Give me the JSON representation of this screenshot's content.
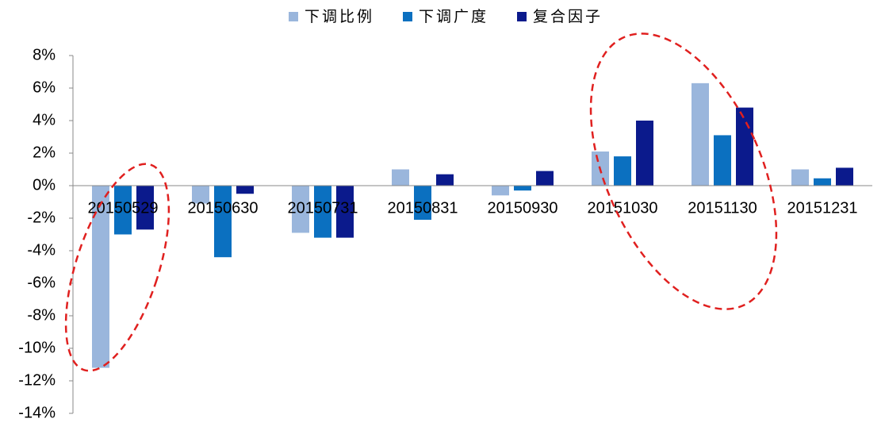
{
  "chart_data": {
    "type": "bar",
    "categories": [
      "20150529",
      "20150630",
      "20150731",
      "20150831",
      "20150930",
      "20151030",
      "20151130",
      "20151231"
    ],
    "series": [
      {
        "name": "下调比例",
        "color": "#9ab6dc",
        "values": [
          -11.2,
          -1.1,
          -2.9,
          1.0,
          -0.6,
          2.1,
          6.3,
          1.0
        ]
      },
      {
        "name": "下调广度",
        "color": "#0b70c0",
        "values": [
          -3.0,
          -4.4,
          -3.2,
          -2.1,
          -0.3,
          1.8,
          3.1,
          0.45
        ]
      },
      {
        "name": "复合因子",
        "color": "#0b1a8c",
        "values": [
          -2.7,
          -0.5,
          -3.2,
          0.7,
          0.9,
          4.0,
          4.8,
          1.1
        ]
      }
    ],
    "ylim": [
      -14,
      8
    ],
    "yticks": [
      {
        "value": -14,
        "label": "-14%"
      },
      {
        "value": -12,
        "label": "-12%"
      },
      {
        "value": -10,
        "label": "-10%"
      },
      {
        "value": -8,
        "label": "-8%"
      },
      {
        "value": -6,
        "label": "-6%"
      },
      {
        "value": -4,
        "label": "-4%"
      },
      {
        "value": -2,
        "label": "-2%"
      },
      {
        "value": 0,
        "label": "0%"
      },
      {
        "value": 2,
        "label": "2%"
      },
      {
        "value": 4,
        "label": "4%"
      },
      {
        "value": 6,
        "label": "6%"
      },
      {
        "value": 8,
        "label": "8%"
      }
    ],
    "legend": "top"
  }
}
